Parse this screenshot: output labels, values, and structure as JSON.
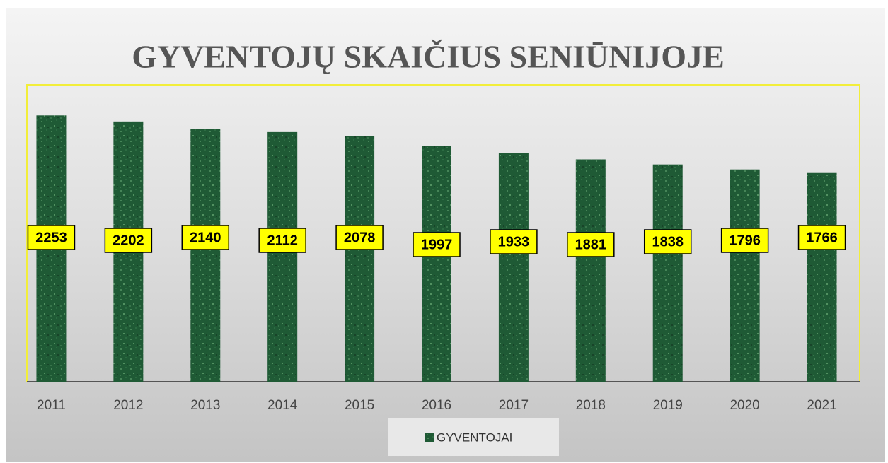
{
  "chart_data": {
    "type": "bar",
    "title": "GYVENTOJŲ SKAIČIUS SENIŪNIJOJE",
    "categories": [
      "2011",
      "2012",
      "2013",
      "2014",
      "2015",
      "2016",
      "2017",
      "2018",
      "2019",
      "2020",
      "2021"
    ],
    "series": [
      {
        "name": "GYVENTOJAI",
        "color": "#1f5a35",
        "values": [
          2253,
          2202,
          2140,
          2112,
          2078,
          1997,
          1933,
          1881,
          1838,
          1796,
          1766
        ]
      }
    ],
    "ylim": [
      0,
      2500
    ],
    "legend": "bottom"
  }
}
